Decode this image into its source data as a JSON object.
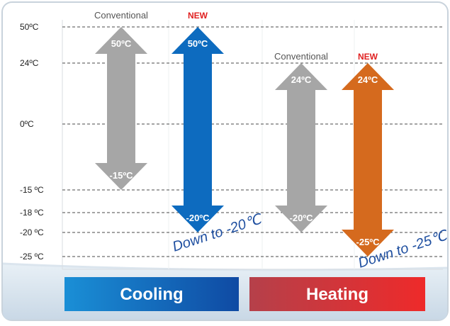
{
  "y_axis": {
    "ticks": [
      {
        "key": "t50",
        "label": "50ºC",
        "value": 50
      },
      {
        "key": "t24",
        "label": "24ºC",
        "value": 24
      },
      {
        "key": "t0",
        "label": "0ºC",
        "value": 0
      },
      {
        "key": "tm15",
        "label": "-15 ºC",
        "value": -15
      },
      {
        "key": "tm18",
        "label": "-18 ºC",
        "value": -18
      },
      {
        "key": "tm20",
        "label": "-20 ºC",
        "value": -20
      },
      {
        "key": "tm25",
        "label": "-25 ºC",
        "value": -25
      }
    ]
  },
  "arrows": [
    {
      "key": "cool_conv",
      "header": "Conventional",
      "top_value": 50,
      "bottom_value": -15,
      "top_label": "50ºC",
      "bottom_label": "-15ºC",
      "color": "#a6a6a6",
      "header_color": "#555555"
    },
    {
      "key": "cool_new",
      "header": "NEW",
      "top_value": 50,
      "bottom_value": -20,
      "top_label": "50ºC",
      "bottom_label": "-20ºC",
      "color": "#0d6bbf",
      "header_color": "#e02020"
    },
    {
      "key": "heat_conv",
      "header": "Conventional",
      "top_value": 24,
      "bottom_value": -20,
      "top_label": "24ºC",
      "bottom_label": "-20ºC",
      "color": "#a6a6a6",
      "header_color": "#555555"
    },
    {
      "key": "heat_new",
      "header": "NEW",
      "top_value": 24,
      "bottom_value": -25,
      "top_label": "24ºC",
      "bottom_label": "-25ºC",
      "color": "#d56a1e",
      "header_color": "#e02020"
    }
  ],
  "callouts": {
    "cooling": "Down to -20℃",
    "heating": "Down to -25℃"
  },
  "modes": {
    "cooling": "Cooling",
    "heating": "Heating"
  },
  "colors": {
    "cooling_bar_left": "#1a8fd6",
    "cooling_bar_right": "#0f4aa3",
    "heating_bar_left": "#b5404a",
    "heating_bar_right": "#ee2a2a",
    "callout": "#1f4fa0"
  }
}
